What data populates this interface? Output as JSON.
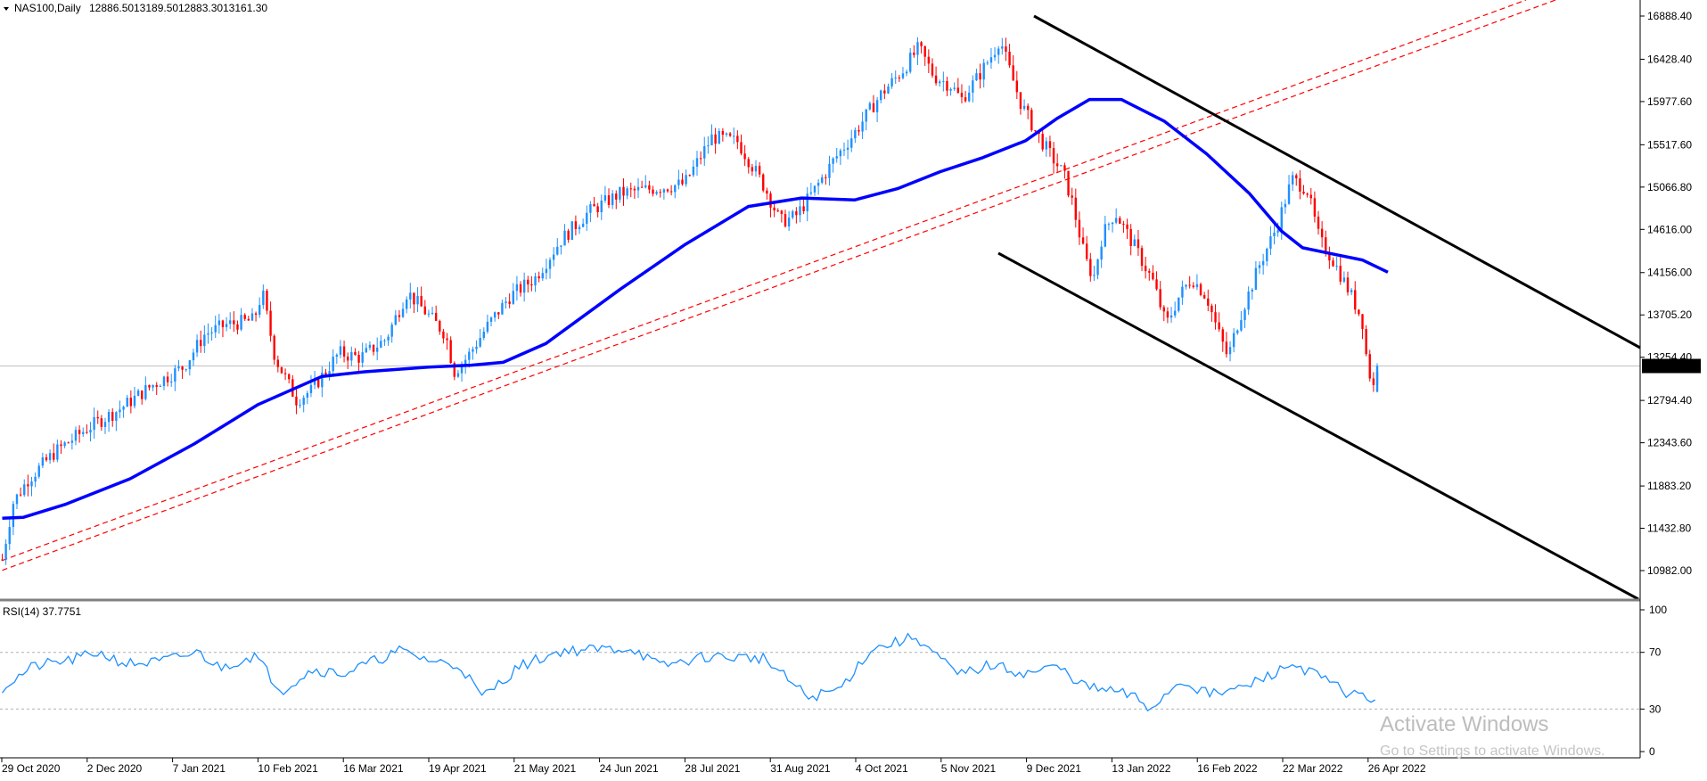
{
  "header": {
    "symbol_label": "NAS100,Daily",
    "ohlc": [
      "12886.50",
      "13189.50",
      "12883.30",
      "13161.30"
    ]
  },
  "colors": {
    "bull": "#1e90ff",
    "bear": "#ff0000",
    "ma": "#0000ff",
    "trend_red": "#ff0000",
    "channel": "#000000",
    "rsi": "#1e90ff",
    "grid": "#c0c0c0"
  },
  "price_axis": {
    "ticks": [
      "16888.40",
      "16428.40",
      "15977.60",
      "15517.60",
      "15066.80",
      "14616.00",
      "14156.00",
      "13705.20",
      "13254.40",
      "12794.40",
      "12343.60",
      "11883.20",
      "11432.80",
      "10982.00"
    ],
    "current_price": 13161.3,
    "current_label": "13161.30",
    "range": [
      10880,
      17050
    ]
  },
  "time_axis": {
    "labels": [
      "29 Oct 2020",
      "2 Dec 2020",
      "7 Jan 2021",
      "10 Feb 2021",
      "16 Mar 2021",
      "19 Apr 2021",
      "21 May 2021",
      "24 Jun 2021",
      "28 Jul 2021",
      "31 Aug 2021",
      "4 Oct 2021",
      "5 Nov 2021",
      "9 Dec 2021",
      "13 Jan 2022",
      "16 Feb 2022",
      "22 Mar 2022",
      "26 Apr 2022"
    ]
  },
  "indicator": {
    "label": "RSI(14) 37.7751",
    "levels": [
      "100",
      "70",
      "30",
      "0"
    ],
    "level_values": [
      100,
      70,
      30,
      0
    ]
  },
  "watermark": {
    "title": "Activate Windows",
    "subtitle": "Go to Settings to activate Windows."
  },
  "chart_data": {
    "type": "candlestick",
    "symbol": "NAS100",
    "timeframe": "Daily",
    "bars": 375,
    "price_path": [
      [
        0,
        11100
      ],
      [
        5,
        11700
      ],
      [
        12,
        11950
      ],
      [
        25,
        12250
      ],
      [
        40,
        12500
      ],
      [
        55,
        12700
      ],
      [
        70,
        12950
      ],
      [
        85,
        13150
      ],
      [
        95,
        13500
      ],
      [
        105,
        13600
      ],
      [
        118,
        13650
      ],
      [
        122,
        13950
      ],
      [
        128,
        13250
      ],
      [
        138,
        12800
      ],
      [
        145,
        12900
      ],
      [
        158,
        13300
      ],
      [
        168,
        13250
      ],
      [
        180,
        13450
      ],
      [
        190,
        13950
      ],
      [
        200,
        13700
      ],
      [
        208,
        13500
      ],
      [
        212,
        13100
      ],
      [
        218,
        13250
      ],
      [
        228,
        13600
      ],
      [
        238,
        13900
      ],
      [
        250,
        14100
      ],
      [
        262,
        14500
      ],
      [
        275,
        14800
      ],
      [
        290,
        15000
      ],
      [
        305,
        15050
      ],
      [
        320,
        15100
      ],
      [
        333,
        15600
      ],
      [
        345,
        15550
      ],
      [
        353,
        15250
      ],
      [
        358,
        15050
      ],
      [
        365,
        14700
      ],
      [
        372,
        14750
      ],
      [
        380,
        15000
      ],
      [
        390,
        15350
      ],
      [
        400,
        15650
      ],
      [
        412,
        16050
      ],
      [
        422,
        16300
      ],
      [
        430,
        16550
      ],
      [
        437,
        16250
      ],
      [
        445,
        16150
      ],
      [
        450,
        16000
      ],
      [
        458,
        16250
      ],
      [
        465,
        16500
      ],
      [
        468,
        16650
      ],
      [
        472,
        16350
      ],
      [
        478,
        15950
      ],
      [
        485,
        15650
      ],
      [
        492,
        15400
      ],
      [
        498,
        15200
      ],
      [
        502,
        14900
      ],
      [
        508,
        14300
      ],
      [
        512,
        14100
      ],
      [
        516,
        14550
      ],
      [
        522,
        14800
      ],
      [
        532,
        14400
      ],
      [
        540,
        14050
      ],
      [
        546,
        13600
      ],
      [
        552,
        13900
      ],
      [
        558,
        14100
      ],
      [
        565,
        13900
      ],
      [
        570,
        13550
      ],
      [
        575,
        13250
      ],
      [
        580,
        13650
      ],
      [
        590,
        14250
      ],
      [
        598,
        14650
      ],
      [
        605,
        15150
      ],
      [
        612,
        15050
      ],
      [
        618,
        14500
      ],
      [
        624,
        14300
      ],
      [
        632,
        13950
      ],
      [
        638,
        13650
      ],
      [
        640,
        13250
      ],
      [
        643,
        12900
      ],
      [
        645,
        13161
      ]
    ],
    "ma_path": [
      [
        0,
        11540
      ],
      [
        10,
        11550
      ],
      [
        30,
        11690
      ],
      [
        60,
        11960
      ],
      [
        90,
        12330
      ],
      [
        120,
        12750
      ],
      [
        150,
        13050
      ],
      [
        170,
        13100
      ],
      [
        200,
        13150
      ],
      [
        220,
        13170
      ],
      [
        235,
        13200
      ],
      [
        255,
        13400
      ],
      [
        290,
        13980
      ],
      [
        320,
        14450
      ],
      [
        350,
        14860
      ],
      [
        375,
        14950
      ],
      [
        400,
        14930
      ],
      [
        420,
        15050
      ],
      [
        440,
        15230
      ],
      [
        460,
        15380
      ],
      [
        480,
        15560
      ],
      [
        495,
        15800
      ],
      [
        510,
        16000
      ],
      [
        525,
        16000
      ],
      [
        545,
        15770
      ],
      [
        565,
        15420
      ],
      [
        585,
        15000
      ],
      [
        600,
        14600
      ],
      [
        610,
        14420
      ],
      [
        625,
        14350
      ],
      [
        638,
        14290
      ],
      [
        650,
        14160
      ]
    ],
    "rsi_path": [
      [
        0,
        45
      ],
      [
        15,
        60
      ],
      [
        35,
        65
      ],
      [
        46,
        70
      ],
      [
        60,
        62
      ],
      [
        75,
        63
      ],
      [
        95,
        70
      ],
      [
        105,
        59
      ],
      [
        122,
        68
      ],
      [
        135,
        43
      ],
      [
        150,
        58
      ],
      [
        165,
        55
      ],
      [
        192,
        71
      ],
      [
        208,
        64
      ],
      [
        222,
        60
      ],
      [
        232,
        38
      ],
      [
        250,
        60
      ],
      [
        270,
        71
      ],
      [
        305,
        73
      ],
      [
        318,
        60
      ],
      [
        340,
        67
      ],
      [
        368,
        66
      ],
      [
        390,
        38
      ],
      [
        405,
        44
      ],
      [
        420,
        72
      ],
      [
        442,
        81
      ],
      [
        462,
        54
      ],
      [
        478,
        61
      ],
      [
        495,
        55
      ],
      [
        510,
        60
      ],
      [
        525,
        45
      ],
      [
        540,
        42
      ],
      [
        548,
        38
      ],
      [
        555,
        30
      ],
      [
        570,
        50
      ],
      [
        585,
        40
      ],
      [
        600,
        45
      ],
      [
        625,
        62
      ],
      [
        638,
        52
      ],
      [
        650,
        42
      ],
      [
        660,
        38
      ],
      [
        665,
        36
      ]
    ],
    "ma_color": "#0000ff",
    "rsi_period": 14,
    "rsi_current": 37.7751,
    "rsi_levels": [
      70,
      30
    ],
    "rsi_range": [
      0,
      100
    ]
  }
}
